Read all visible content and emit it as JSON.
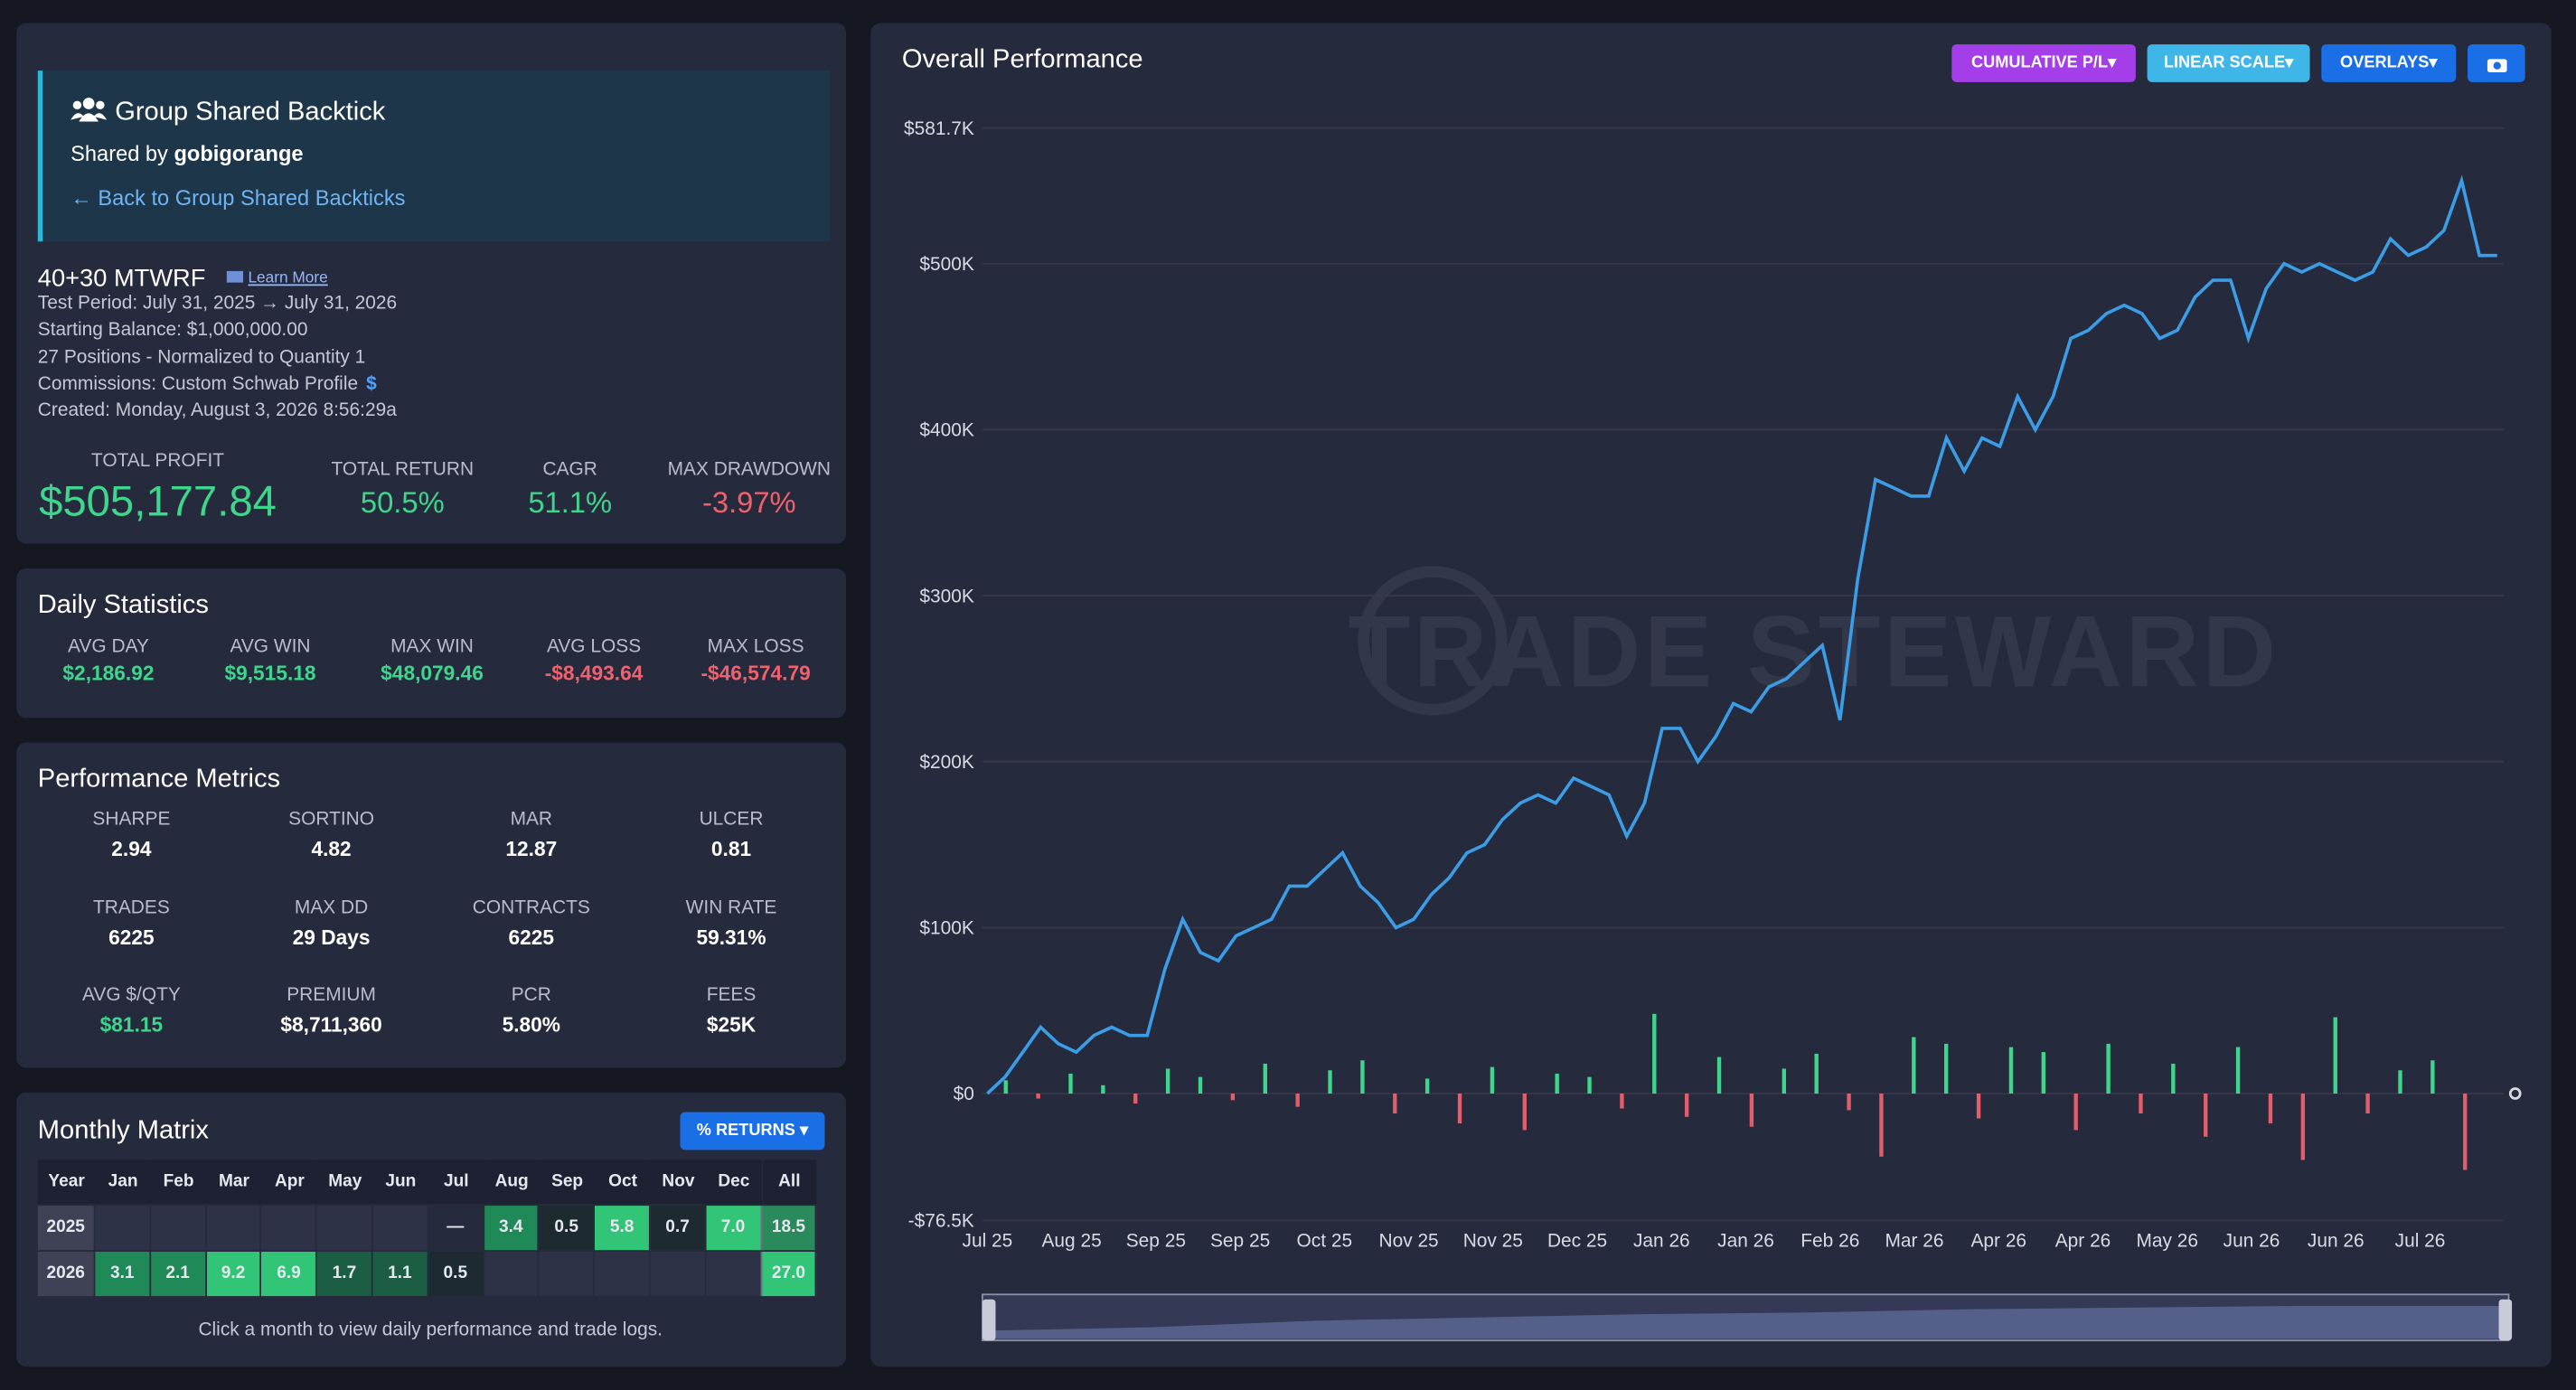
{
  "header": {
    "title": "Group Shared Backtick",
    "shared_by_label": "Shared by",
    "shared_by": "gobigorange",
    "back_link": "← Back to Group Shared Backticks"
  },
  "strategy": {
    "name": "40+30 MTWRF",
    "learn_more": "Learn More",
    "details": [
      "Test Period: July 31, 2025 → July 31, 2026",
      "Starting Balance: $1,000,000.00",
      "27 Positions - Normalized to Quantity 1",
      "Commissions: Custom Schwab Profile",
      "Created: Monday, August 3, 2026 8:56:29a"
    ],
    "commission_icon": "$"
  },
  "summary": [
    {
      "label": "TOTAL PROFIT",
      "value": "$505,177.84",
      "color": "#3dd68c"
    },
    {
      "label": "TOTAL RETURN",
      "value": "50.5%",
      "color": "#3dd68c"
    },
    {
      "label": "CAGR",
      "value": "51.1%",
      "color": "#3dd68c"
    },
    {
      "label": "MAX DRAWDOWN",
      "value": "-3.97%",
      "color": "#f0616d"
    }
  ],
  "daily_statistics": {
    "title": "Daily Statistics",
    "items": [
      {
        "label": "AVG DAY",
        "value": "$2,186.92",
        "color": "#3dd68c"
      },
      {
        "label": "AVG WIN",
        "value": "$9,515.18",
        "color": "#3dd68c"
      },
      {
        "label": "MAX WIN",
        "value": "$48,079.46",
        "color": "#3dd68c"
      },
      {
        "label": "AVG LOSS",
        "value": "-$8,493.64",
        "color": "#f0616d"
      },
      {
        "label": "MAX LOSS",
        "value": "-$46,574.79",
        "color": "#f0616d"
      }
    ]
  },
  "performance_metrics": {
    "title": "Performance Metrics",
    "items": [
      {
        "label": "SHARPE",
        "value": "2.94"
      },
      {
        "label": "SORTINO",
        "value": "4.82"
      },
      {
        "label": "MAR",
        "value": "12.87"
      },
      {
        "label": "ULCER",
        "value": "0.81"
      },
      {
        "label": "TRADES",
        "value": "6225"
      },
      {
        "label": "MAX DD",
        "value": "29 Days"
      },
      {
        "label": "CONTRACTS",
        "value": "6225"
      },
      {
        "label": "WIN RATE",
        "value": "59.31%"
      },
      {
        "label": "AVG $/QTY",
        "value": "$81.15",
        "color": "#3dd68c"
      },
      {
        "label": "PREMIUM",
        "value": "$8,711,360"
      },
      {
        "label": "PCR",
        "value": "5.80%"
      },
      {
        "label": "FEES",
        "value": "$25K"
      }
    ]
  },
  "monthly_matrix": {
    "title": "Monthly Matrix",
    "button": "% RETURNS",
    "columns": [
      "Year",
      "Jan",
      "Feb",
      "Mar",
      "Apr",
      "May",
      "Jun",
      "Jul",
      "Aug",
      "Sep",
      "Oct",
      "Nov",
      "Dec",
      "All"
    ],
    "rows": [
      [
        "2025",
        null,
        null,
        null,
        null,
        null,
        null,
        "—",
        "3.4",
        "0.5",
        "5.8",
        "0.7",
        "7.0",
        "18.5"
      ],
      [
        "2026",
        "3.1",
        "2.1",
        "9.2",
        "6.9",
        "1.7",
        "1.1",
        "0.5",
        null,
        null,
        null,
        null,
        null,
        "27.0"
      ]
    ],
    "footer": "Click a month to view daily performance and trade logs."
  },
  "chart_data": {
    "type": "line",
    "title": "Overall Performance",
    "buttons": [
      "CUMULATIVE P/L",
      "LINEAR SCALE",
      "OVERLAYS"
    ],
    "watermark": "TRADE STEWARD",
    "x_labels": [
      "Jul 25",
      "Aug 25",
      "Sep 25",
      "Sep 25",
      "Oct 25",
      "Nov 25",
      "Nov 25",
      "Dec 25",
      "Jan 26",
      "Jan 26",
      "Feb 26",
      "Mar 26",
      "Apr 26",
      "Apr 26",
      "May 26",
      "Jun 26",
      "Jun 26",
      "Jul 26"
    ],
    "ylim": [
      -76500,
      581700
    ],
    "yticks": [
      {
        "value": -76500,
        "label": "-$76.5K"
      },
      {
        "value": 0,
        "label": "$0"
      },
      {
        "value": 100000,
        "label": "$100K"
      },
      {
        "value": 200000,
        "label": "$200K"
      },
      {
        "value": 300000,
        "label": "$300K"
      },
      {
        "value": 400000,
        "label": "$400K"
      },
      {
        "value": 500000,
        "label": "$500K"
      },
      {
        "value": 581700,
        "label": "$581.7K"
      }
    ],
    "grid": true,
    "series": [
      {
        "type": "line",
        "color": "#3a9de6",
        "values": [
          0,
          10000,
          25000,
          40000,
          30000,
          25000,
          35000,
          40000,
          35000,
          35000,
          75000,
          105000,
          85000,
          80000,
          95000,
          100000,
          105000,
          125000,
          125000,
          135000,
          145000,
          125000,
          115000,
          100000,
          105000,
          120000,
          130000,
          145000,
          150000,
          165000,
          175000,
          180000,
          175000,
          190000,
          185000,
          180000,
          155000,
          175000,
          220000,
          220000,
          200000,
          215000,
          235000,
          230000,
          245000,
          250000,
          260000,
          270000,
          225000,
          310000,
          370000,
          365000,
          360000,
          360000,
          395000,
          375000,
          395000,
          390000,
          420000,
          400000,
          420000,
          455000,
          460000,
          470000,
          475000,
          470000,
          455000,
          460000,
          480000,
          490000,
          490000,
          455000,
          485000,
          500000,
          495000,
          500000,
          495000,
          490000,
          495000,
          515000,
          505000,
          510000,
          520000,
          550000,
          505000,
          505000
        ]
      },
      {
        "type": "bar",
        "color": "#3dd68c",
        "negative_color": "#e35d6a",
        "values": [
          8000,
          -3000,
          12000,
          5000,
          -6000,
          15000,
          10000,
          -4000,
          18000,
          -8000,
          14000,
          20000,
          -12000,
          9000,
          -18000,
          16000,
          -22000,
          12000,
          10000,
          -9000,
          48000,
          -14000,
          22000,
          -20000,
          15000,
          24000,
          -10000,
          -38000,
          34000,
          30000,
          -15000,
          28000,
          25000,
          -22000,
          30000,
          -12000,
          18000,
          -26000,
          28000,
          -18000,
          -40000,
          46000,
          -12000,
          14000,
          20000,
          -46000
        ]
      }
    ]
  }
}
